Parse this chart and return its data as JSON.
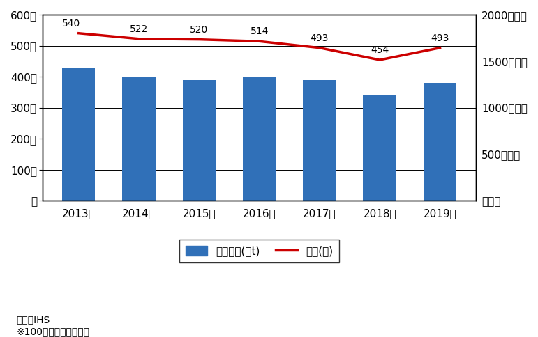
{
  "years": [
    "2013年",
    "2014年",
    "2015年",
    "2016年",
    "2017年",
    "2018年",
    "2019年"
  ],
  "bar_values_left": [
    430,
    400,
    390,
    400,
    390,
    340,
    380
  ],
  "line_values_left": [
    540,
    522,
    520,
    514,
    493,
    454,
    493
  ],
  "line_labels": [
    540,
    522,
    520,
    514,
    493,
    454,
    493
  ],
  "bar_color": "#3070b8",
  "line_color": "#cc0000",
  "left_ylim": [
    0,
    600
  ],
  "left_yticks": [
    0,
    100,
    200,
    300,
    400,
    500,
    600
  ],
  "left_yticklabels": [
    "隻",
    "100隻",
    "200隻",
    "300隻",
    "400隻",
    "500隻",
    "600隻"
  ],
  "right_ylim": [
    0,
    2000
  ],
  "right_yticks": [
    0,
    500,
    1000,
    1500,
    2000
  ],
  "right_yticklabels": [
    "万トン",
    "500万トン",
    "1000万トン",
    "1500万トン",
    "2000万トン"
  ],
  "legend_bar_label": "総トン数(万t)",
  "legend_line_label": "隻数(隻)",
  "source_text": "資料：IHS",
  "note_text": "※100総トン以上の船舶",
  "background_color": "#ffffff",
  "grid_color": "#000000",
  "font_size_tick": 11,
  "font_size_label": 10,
  "font_size_legend": 11,
  "font_size_source": 10,
  "bar_width": 0.55
}
